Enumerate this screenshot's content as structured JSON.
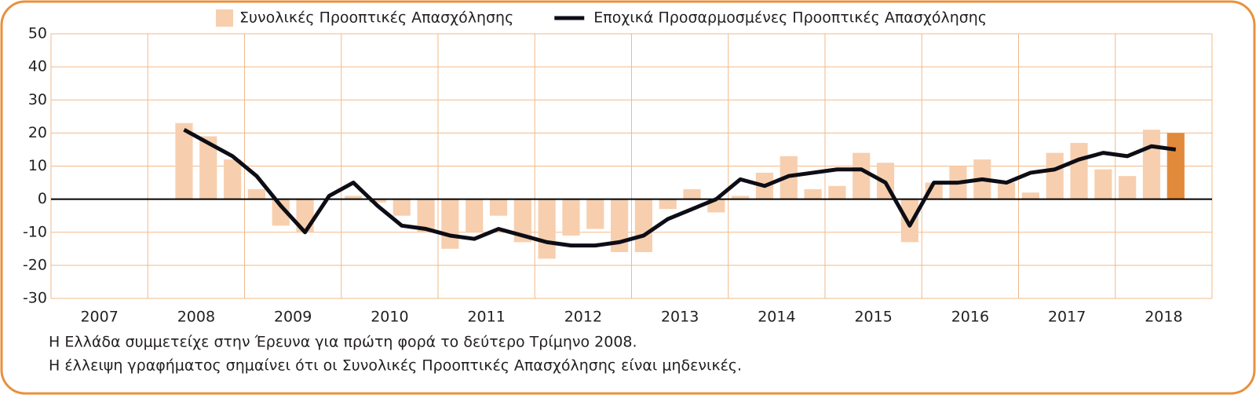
{
  "chart_data": {
    "type": "bar-line",
    "legend": {
      "position": "top"
    },
    "year_labels": [
      "2007",
      "2008",
      "2009",
      "2010",
      "2011",
      "2012",
      "2013",
      "2014",
      "2015",
      "2016",
      "2017",
      "2018"
    ],
    "series": [
      {
        "name": "Συνολικές Προοπτικές Απασχόλησης",
        "type": "bar",
        "color": "#f7cfae",
        "highlight_color": "#e28a3b",
        "values": [
          null,
          null,
          null,
          null,
          null,
          23,
          19,
          12,
          3,
          -8,
          -10,
          0,
          1,
          -1,
          -5,
          -10,
          -15,
          -10,
          -5,
          -13,
          -18,
          -11,
          -9,
          -16,
          -16,
          -3,
          3,
          -4,
          1,
          8,
          13,
          3,
          4,
          14,
          11,
          -13,
          5,
          10,
          12,
          5,
          2,
          14,
          17,
          9,
          7,
          21,
          20,
          null
        ]
      },
      {
        "name": "Εποχικά Προσαρμοσμένες Προοπτικές Απασχόλησης",
        "type": "line",
        "color": "#0d0d16",
        "values": [
          null,
          null,
          null,
          null,
          null,
          21,
          17,
          13,
          7,
          -2,
          -10,
          1,
          5,
          -2,
          -8,
          -9,
          -11,
          -12,
          -9,
          -11,
          -13,
          -14,
          -14,
          -13,
          -11,
          -6,
          -3,
          0,
          6,
          4,
          7,
          8,
          9,
          9,
          5,
          -8,
          5,
          5,
          6,
          5,
          8,
          9,
          12,
          14,
          13,
          16,
          15,
          null
        ]
      }
    ],
    "ylim": [
      -30,
      50
    ],
    "yticks": [
      -30,
      -20,
      -10,
      0,
      10,
      20,
      30,
      40,
      50
    ],
    "grid": true,
    "notes": [
      "Η Ελλάδα συμμετείχε στην Έρευνα για πρώτη φορά το δεύτερο Τρίμηνο 2008.",
      "Η έλλειψη γραφήματος σημαίνει ότι οι Συνολικές Προοπτικές Απασχόλησης είναι μηδενικές."
    ]
  }
}
